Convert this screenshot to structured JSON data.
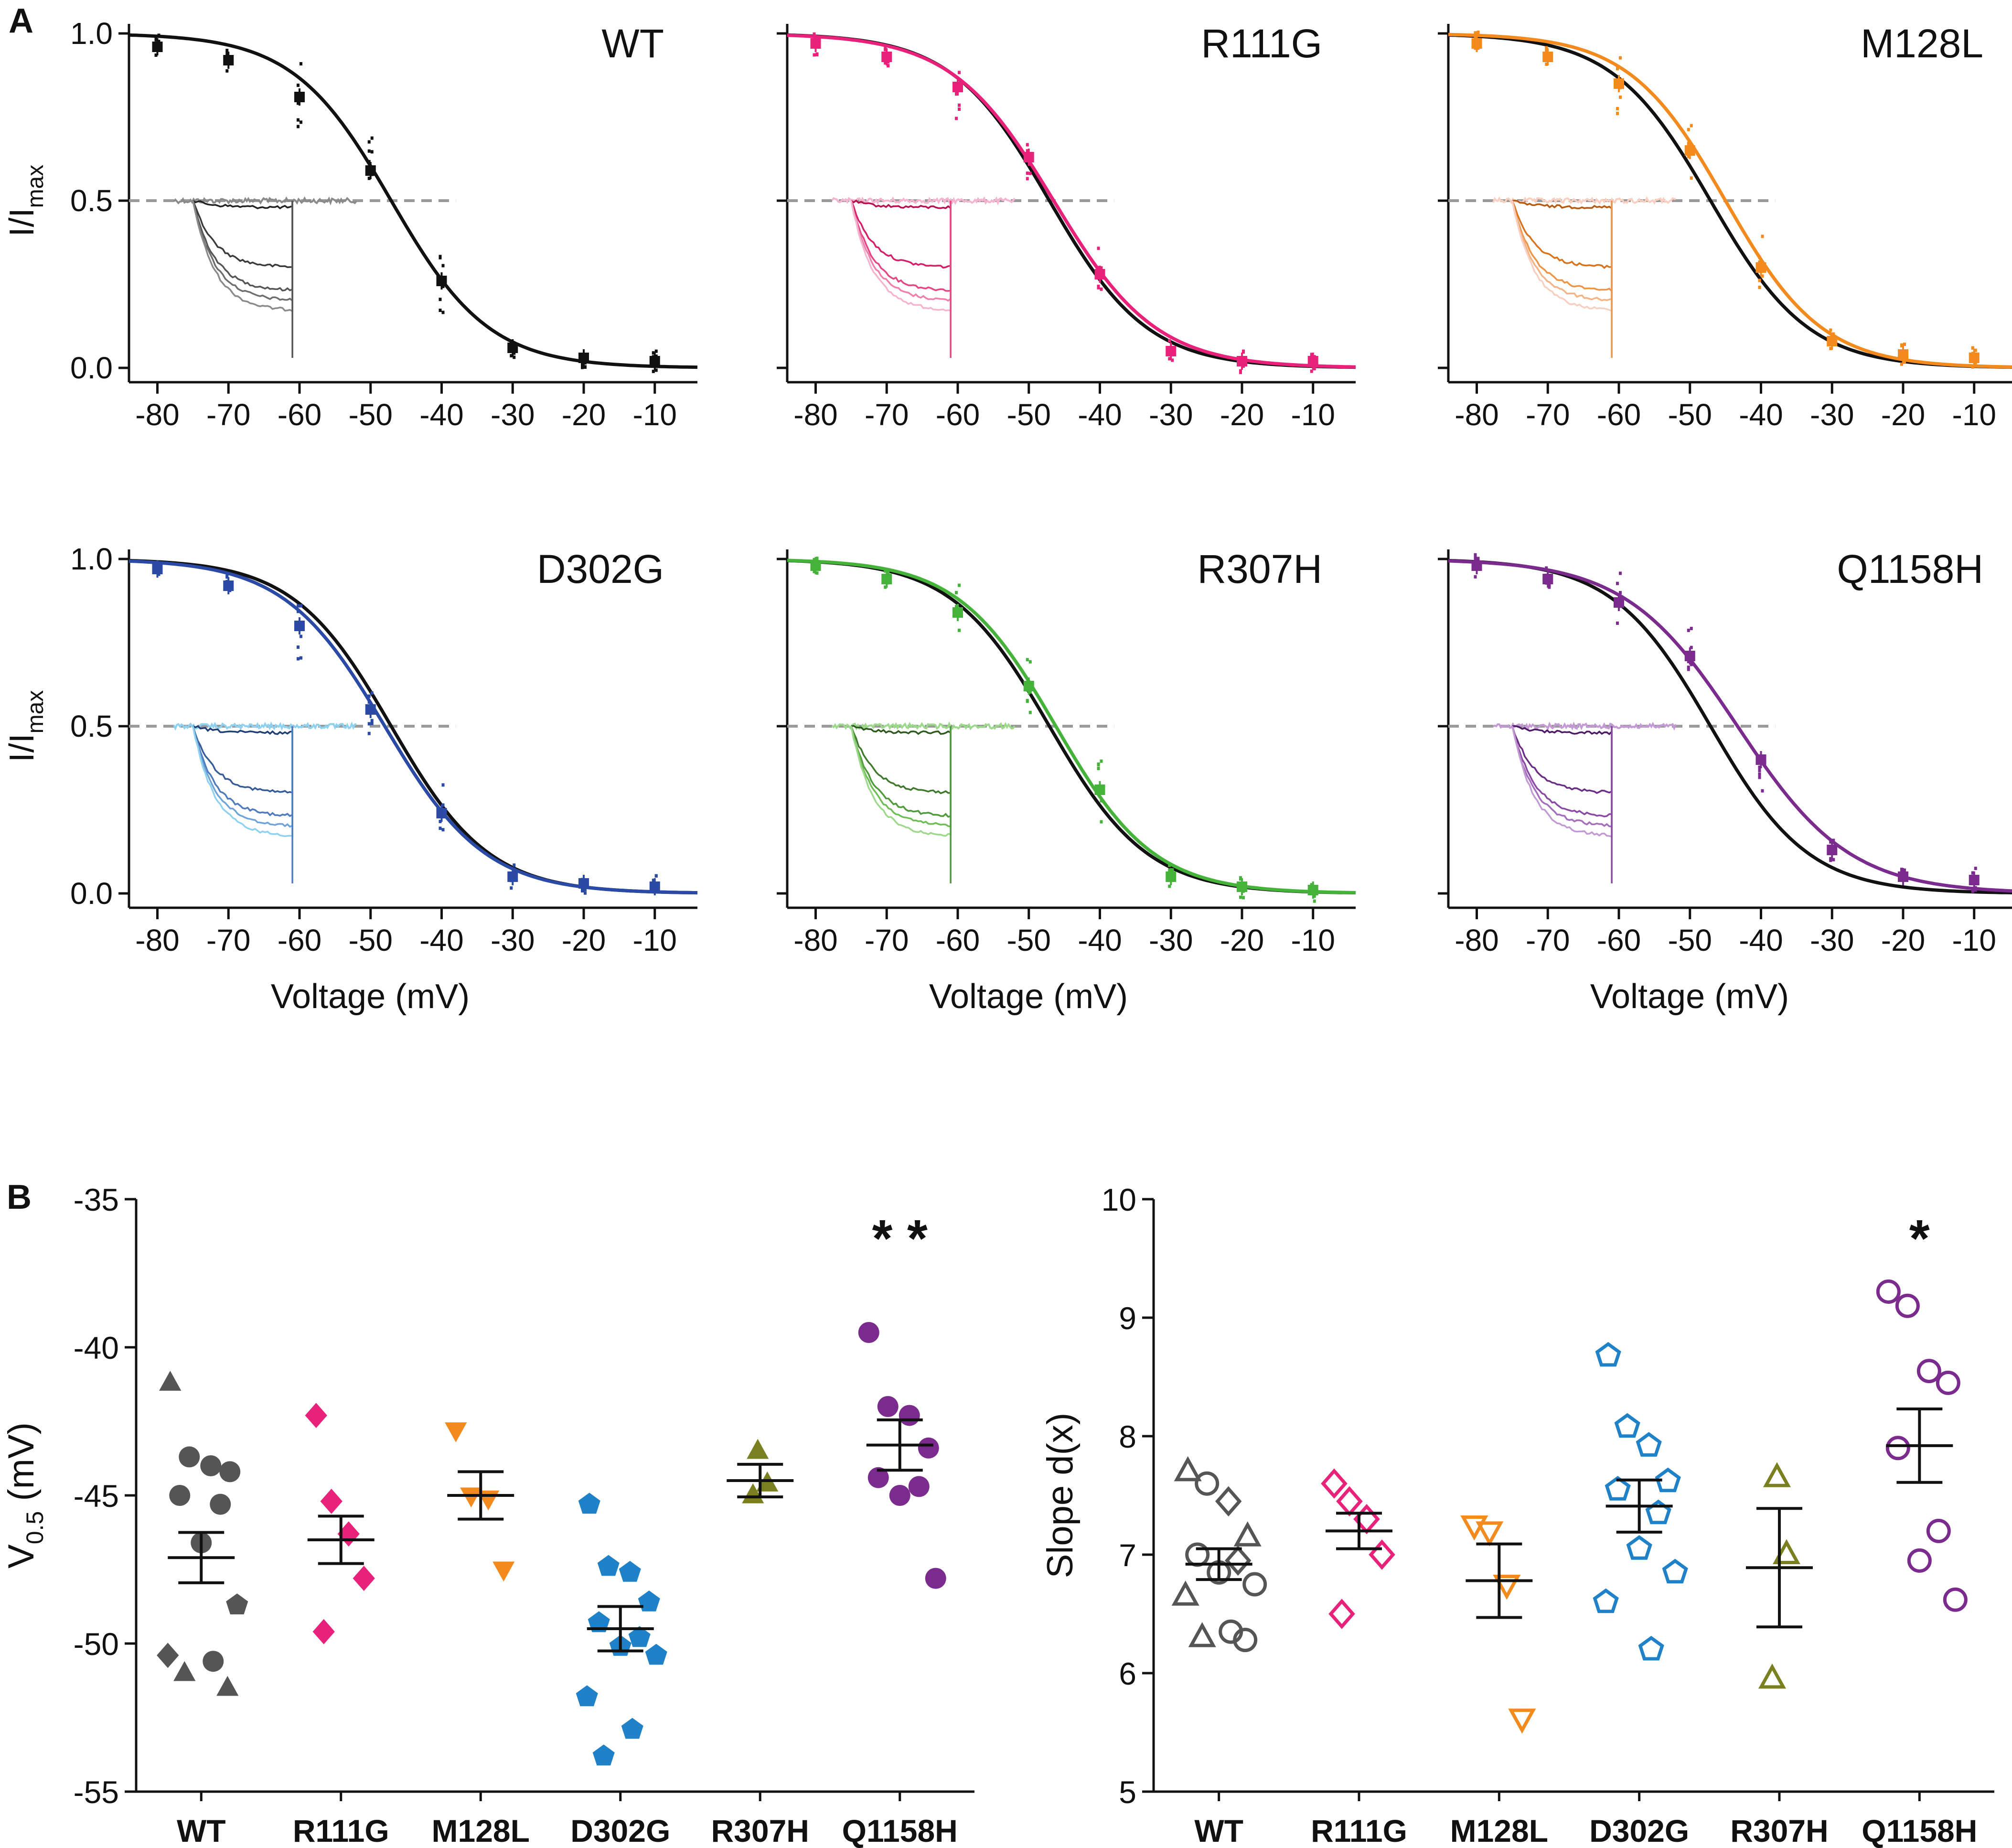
{
  "figure": {
    "panel_a_letter": "A",
    "panel_b_letter": "B"
  },
  "colors": {
    "WT": "#111111",
    "R111G": "#e8217a",
    "M128L": "#f28a1e",
    "D302G": "#2b4aa6",
    "R307H": "#45b33a",
    "Q1158H": "#7b2a8e",
    "R307H_dot": "#7a7f1f",
    "D302G_dot": "#1f82c8",
    "WT_dot": "#555555",
    "trace_WT": [
      "#222222",
      "#3a3a3a",
      "#555555",
      "#6e6e6e",
      "#8a8a8a"
    ],
    "trace_R111G": [
      "#b5124f",
      "#d51d68",
      "#e54585",
      "#ef7fab",
      "#f6b5cf"
    ],
    "trace_M128L": [
      "#b55a10",
      "#d9731b",
      "#ee9444",
      "#f5b384",
      "#f8cfc0"
    ],
    "trace_D302G": [
      "#1f3f74",
      "#355c99",
      "#4f7bbd",
      "#6fa4d8",
      "#8fd2f0"
    ],
    "trace_R307H": [
      "#2e5a20",
      "#3f7a2c",
      "#4f9a3a",
      "#6fbd55",
      "#9dd98a"
    ],
    "trace_Q1158H": [
      "#4d1a66",
      "#6a2c84",
      "#8a47a3",
      "#a66dbd",
      "#c39ad4"
    ]
  },
  "chart_data": [
    {
      "type": "line",
      "id": "WT",
      "title": "WT",
      "xlabel": "",
      "ylabel": "I/I",
      "ylabel_sub": "max",
      "xlim": [
        -84,
        -4
      ],
      "ylim": [
        0,
        1
      ],
      "xticks": [
        -80,
        -70,
        -60,
        -50,
        -40,
        -30,
        -20,
        -10
      ],
      "xticklabels": [
        "-80",
        "-70",
        "-60",
        "-50",
        "-40",
        "-30",
        "-20",
        "-10"
      ],
      "yticks": [
        0,
        0.5,
        1
      ],
      "yticklabels": [
        "0.0",
        "0.5",
        "1.0"
      ],
      "reference_line_y": 0.5,
      "series": [
        {
          "name": "WT fit",
          "v_half": -47.1,
          "slope": 6.9,
          "color_key": "WT"
        },
        {
          "name": "WT mean",
          "x": [
            -80,
            -70,
            -60,
            -50,
            -40,
            -30,
            -20,
            -10
          ],
          "y": [
            0.96,
            0.92,
            0.81,
            0.59,
            0.26,
            0.06,
            0.03,
            0.02
          ],
          "color_key": "WT"
        }
      ]
    },
    {
      "type": "line",
      "id": "R111G",
      "title": "R111G",
      "xlabel": "",
      "ylabel": "",
      "xlim": [
        -84,
        -4
      ],
      "ylim": [
        0,
        1
      ],
      "xticks": [
        -80,
        -70,
        -60,
        -50,
        -40,
        -30,
        -20,
        -10
      ],
      "xticklabels": [
        "-80",
        "-70",
        "-60",
        "-50",
        "-40",
        "-30",
        "-20",
        "-10"
      ],
      "yticks": [
        0,
        0.5,
        1
      ],
      "yticklabels": [],
      "reference_line_y": 0.5,
      "series": [
        {
          "name": "WT fit",
          "v_half": -47.1,
          "slope": 6.9,
          "color_key": "WT"
        },
        {
          "name": "R111G fit",
          "v_half": -46.5,
          "slope": 7.2,
          "color_key": "R111G"
        },
        {
          "name": "R111G mean",
          "x": [
            -80,
            -70,
            -60,
            -50,
            -40,
            -30,
            -20,
            -10
          ],
          "y": [
            0.97,
            0.93,
            0.84,
            0.63,
            0.28,
            0.05,
            0.02,
            0.02
          ],
          "color_key": "R111G"
        }
      ]
    },
    {
      "type": "line",
      "id": "M128L",
      "title": "M128L",
      "xlabel": "",
      "ylabel": "",
      "xlim": [
        -84,
        -4
      ],
      "ylim": [
        0,
        1
      ],
      "xticks": [
        -80,
        -70,
        -60,
        -50,
        -40,
        -30,
        -20,
        -10
      ],
      "xticklabels": [
        "-80",
        "-70",
        "-60",
        "-50",
        "-40",
        "-30",
        "-20",
        "-10"
      ],
      "yticks": [
        0,
        0.5,
        1
      ],
      "yticklabels": [],
      "reference_line_y": 0.5,
      "series": [
        {
          "name": "WT fit",
          "v_half": -47.1,
          "slope": 6.9,
          "color_key": "WT"
        },
        {
          "name": "M128L fit",
          "v_half": -45.0,
          "slope": 6.8,
          "color_key": "M128L"
        },
        {
          "name": "M128L mean",
          "x": [
            -80,
            -70,
            -60,
            -50,
            -40,
            -30,
            -20,
            -10
          ],
          "y": [
            0.97,
            0.93,
            0.85,
            0.65,
            0.3,
            0.08,
            0.04,
            0.03
          ],
          "color_key": "M128L"
        }
      ]
    },
    {
      "type": "line",
      "id": "D302G",
      "title": "D302G",
      "xlabel": "Voltage (mV)",
      "ylabel": "I/I",
      "ylabel_sub": "max",
      "xlim": [
        -84,
        -4
      ],
      "ylim": [
        0,
        1
      ],
      "xticks": [
        -80,
        -70,
        -60,
        -50,
        -40,
        -30,
        -20,
        -10
      ],
      "xticklabels": [
        "-80",
        "-70",
        "-60",
        "-50",
        "-40",
        "-30",
        "-20",
        "-10"
      ],
      "yticks": [
        0,
        0.5,
        1
      ],
      "yticklabels": [
        "0.0",
        "0.5",
        "1.0"
      ],
      "reference_line_y": 0.5,
      "series": [
        {
          "name": "WT fit",
          "v_half": -47.1,
          "slope": 6.9,
          "color_key": "WT"
        },
        {
          "name": "D302G fit",
          "v_half": -48.0,
          "slope": 7.1,
          "color_key": "D302G"
        },
        {
          "name": "D302G mean",
          "x": [
            -80,
            -70,
            -60,
            -50,
            -40,
            -30,
            -20,
            -10
          ],
          "y": [
            0.97,
            0.92,
            0.8,
            0.55,
            0.24,
            0.05,
            0.03,
            0.02
          ],
          "color_key": "D302G"
        }
      ]
    },
    {
      "type": "line",
      "id": "R307H",
      "title": "R307H",
      "xlabel": "Voltage (mV)",
      "ylabel": "",
      "xlim": [
        -84,
        -4
      ],
      "ylim": [
        0,
        1
      ],
      "xticks": [
        -80,
        -70,
        -60,
        -50,
        -40,
        -30,
        -20,
        -10
      ],
      "xticklabels": [
        "-80",
        "-70",
        "-60",
        "-50",
        "-40",
        "-30",
        "-20",
        "-10"
      ],
      "yticks": [
        0,
        0.5,
        1
      ],
      "yticklabels": [],
      "reference_line_y": 0.5,
      "series": [
        {
          "name": "WT fit",
          "v_half": -47.1,
          "slope": 6.9,
          "color_key": "WT"
        },
        {
          "name": "R307H fit",
          "v_half": -46.2,
          "slope": 6.9,
          "color_key": "R307H"
        },
        {
          "name": "R307H mean",
          "x": [
            -80,
            -70,
            -60,
            -50,
            -40,
            -30,
            -20,
            -10
          ],
          "y": [
            0.98,
            0.94,
            0.84,
            0.62,
            0.31,
            0.05,
            0.02,
            0.01
          ],
          "color_key": "R307H"
        }
      ]
    },
    {
      "type": "line",
      "id": "Q1158H",
      "title": "Q1158H",
      "xlabel": "Voltage (mV)",
      "ylabel": "",
      "xlim": [
        -84,
        -4
      ],
      "ylim": [
        0,
        1
      ],
      "xticks": [
        -80,
        -70,
        -60,
        -50,
        -40,
        -30,
        -20,
        -10
      ],
      "xticklabels": [
        "-80",
        "-70",
        "-60",
        "-50",
        "-40",
        "-30",
        "-20",
        "-10"
      ],
      "yticks": [
        0,
        0.5,
        1
      ],
      "yticklabels": [],
      "reference_line_y": 0.5,
      "series": [
        {
          "name": "WT fit",
          "v_half": -47.1,
          "slope": 6.9,
          "color_key": "WT"
        },
        {
          "name": "Q1158H fit",
          "v_half": -43.3,
          "slope": 7.9,
          "color_key": "Q1158H"
        },
        {
          "name": "Q1158H mean",
          "x": [
            -80,
            -70,
            -60,
            -50,
            -40,
            -30,
            -20,
            -10
          ],
          "y": [
            0.98,
            0.94,
            0.87,
            0.71,
            0.4,
            0.13,
            0.05,
            0.04
          ],
          "color_key": "Q1158H"
        }
      ]
    },
    {
      "type": "scatter",
      "id": "v_half",
      "title": "",
      "xlabel": "",
      "ylabel": "V",
      "ylabel_sub": "0.5",
      "ylabel_suffix": " (mV)",
      "ylim": [
        -55,
        -35
      ],
      "yticks": [
        -55,
        -50,
        -45,
        -40,
        -35
      ],
      "yticklabels": [
        "-55",
        "-50",
        "-45",
        "-40",
        "-35"
      ],
      "categories": [
        "WT",
        "R111G",
        "M128L",
        "D302G",
        "R307H",
        "Q1158H"
      ],
      "markers": [
        "mixed",
        "diamond",
        "triangle-down",
        "pentagon",
        "triangle-up",
        "circle"
      ],
      "filled": true,
      "points": [
        [
          -41.2,
          -43.7,
          -44.0,
          -44.2,
          -45.0,
          -45.3,
          -46.6,
          -48.7,
          -50.4,
          -50.6,
          -51.0,
          -51.5
        ],
        [
          -42.3,
          -45.2,
          -46.3,
          -47.8,
          -49.6
        ],
        [
          -42.8,
          -45.0,
          -45.1,
          -47.5
        ],
        [
          -45.3,
          -47.4,
          -47.6,
          -48.6,
          -49.3,
          -49.8,
          -50.1,
          -50.4,
          -51.8,
          -52.9,
          -53.8
        ],
        [
          -43.5,
          -44.6,
          -45.0
        ],
        [
          -39.5,
          -42.0,
          -42.3,
          -43.4,
          -44.4,
          -44.7,
          -45.0,
          -47.8
        ]
      ],
      "mean": [
        -47.1,
        -46.5,
        -45.0,
        -49.5,
        -44.5,
        -43.3
      ],
      "sem": [
        0.85,
        0.8,
        0.8,
        0.75,
        0.55,
        0.85
      ],
      "annotations": [
        {
          "category": "Q1158H",
          "text": "* *"
        }
      ]
    },
    {
      "type": "scatter",
      "id": "slope",
      "title": "",
      "xlabel": "",
      "ylabel": "Slope d(x)",
      "ylim": [
        5,
        10
      ],
      "yticks": [
        5,
        6,
        7,
        8,
        9,
        10
      ],
      "yticklabels": [
        "5",
        "6",
        "7",
        "8",
        "9",
        "10"
      ],
      "categories": [
        "WT",
        "R111G",
        "M128L",
        "D302G",
        "R307H",
        "Q1158H"
      ],
      "markers": [
        "mixed",
        "diamond",
        "triangle-down",
        "pentagon",
        "triangle-up",
        "circle"
      ],
      "filled": false,
      "points": [
        [
          7.7,
          7.6,
          7.45,
          7.15,
          7.0,
          6.95,
          6.85,
          6.75,
          6.65,
          6.35,
          6.3,
          6.28
        ],
        [
          7.6,
          7.45,
          7.3,
          7.0,
          6.5
        ],
        [
          7.25,
          7.2,
          6.75,
          5.62
        ],
        [
          8.68,
          8.08,
          7.92,
          7.62,
          7.55,
          7.35,
          7.05,
          6.85,
          6.6,
          6.2
        ],
        [
          7.65,
          7.0,
          5.95
        ],
        [
          9.22,
          9.1,
          8.55,
          8.45,
          7.9,
          7.2,
          6.95,
          6.62
        ]
      ],
      "mean": [
        6.92,
        7.2,
        6.78,
        7.41,
        6.89,
        7.92
      ],
      "sem": [
        0.13,
        0.15,
        0.31,
        0.22,
        0.5,
        0.31
      ],
      "annotations": [
        {
          "category": "Q1158H",
          "text": "*"
        }
      ]
    }
  ]
}
